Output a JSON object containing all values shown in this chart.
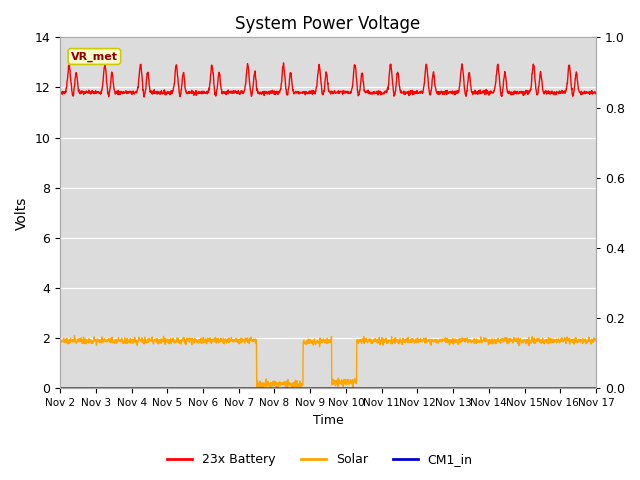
{
  "title": "System Power Voltage",
  "xlabel": "Time",
  "ylabel": "Volts",
  "ylim_left": [
    0,
    14
  ],
  "ylim_right": [
    0.0,
    1.0
  ],
  "yticks_left": [
    0,
    2,
    4,
    6,
    8,
    10,
    12,
    14
  ],
  "yticks_right": [
    0.0,
    0.2,
    0.4,
    0.6,
    0.8,
    1.0
  ],
  "xtick_labels": [
    "Nov 2",
    "Nov 3",
    "Nov 4",
    "Nov 5",
    "Nov 6",
    "Nov 7",
    "Nov 8",
    "Nov 9",
    "Nov 10",
    "Nov 11",
    "Nov 12",
    "Nov 13",
    "Nov 14",
    "Nov 15",
    "Nov 16",
    "Nov 17"
  ],
  "annotation_text": "VR_met",
  "bg_color": "#dcdcdc",
  "legend_labels": [
    "23x Battery",
    "Solar",
    "CM1_in"
  ],
  "legend_colors": [
    "#ff0000",
    "#ffa500",
    "#0000cd"
  ],
  "battery_color": "#ff0000",
  "solar_color": "#ffa500",
  "cm1_color": "#0000cd",
  "line_width": 1.0,
  "n_days": 15,
  "pts_per_day": 120
}
